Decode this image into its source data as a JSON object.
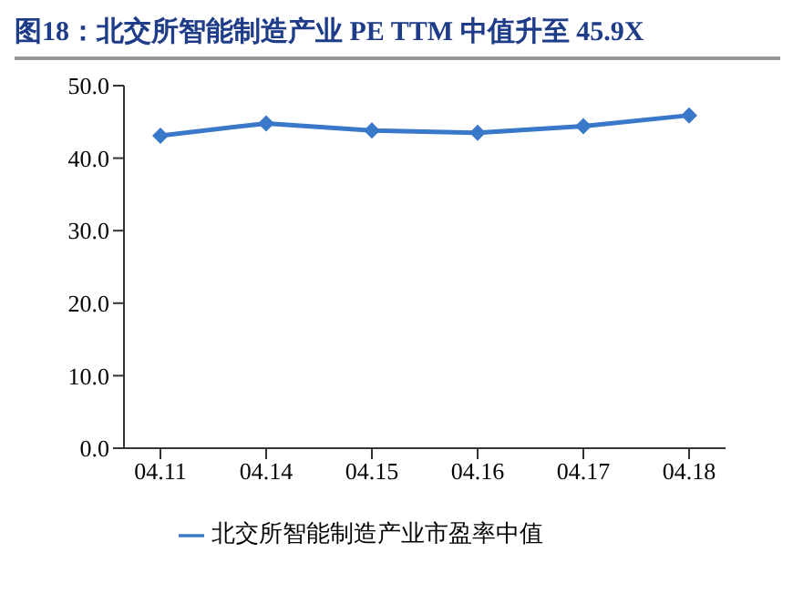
{
  "chart_data": {
    "type": "line",
    "title": "图18：北交所智能制造产业 PE TTM 中值升至 45.9X",
    "categories": [
      "04.11",
      "04.14",
      "04.15",
      "04.16",
      "04.17",
      "04.18"
    ],
    "series": [
      {
        "name": "北交所智能制造产业市盈率中值",
        "color": "#3a78c9",
        "values": [
          43.1,
          44.8,
          43.8,
          43.5,
          44.4,
          45.9
        ]
      }
    ],
    "ylim": [
      0,
      50
    ],
    "yticks": [
      {
        "value": 0,
        "label": "0.0"
      },
      {
        "value": 10,
        "label": "10.0"
      },
      {
        "value": 20,
        "label": "20.0"
      },
      {
        "value": 30,
        "label": "30.0"
      },
      {
        "value": 40,
        "label": "40.0"
      },
      {
        "value": 50,
        "label": "50.0"
      }
    ],
    "marker": "diamond",
    "legend": "bottom",
    "grid": false
  }
}
